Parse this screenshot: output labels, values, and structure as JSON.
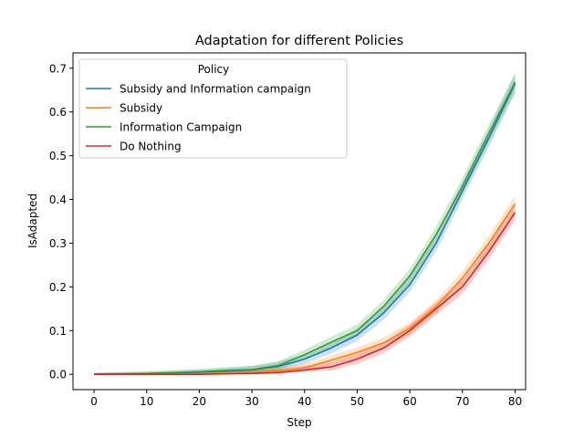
{
  "chart_data": {
    "type": "line",
    "title": "Adaptation for different Policies",
    "xlabel": "Step",
    "ylabel": "IsAdapted",
    "xlim": [
      -4,
      82
    ],
    "ylim": [
      -0.035,
      0.735
    ],
    "xticks": [
      0,
      10,
      20,
      30,
      40,
      50,
      60,
      70,
      80
    ],
    "yticks": [
      0.0,
      0.1,
      0.2,
      0.3,
      0.4,
      0.5,
      0.6,
      0.7
    ],
    "xtick_labels": [
      "0",
      "10",
      "20",
      "30",
      "40",
      "50",
      "60",
      "70",
      "80"
    ],
    "ytick_labels": [
      "0.0",
      "0.1",
      "0.2",
      "0.3",
      "0.4",
      "0.5",
      "0.6",
      "0.7"
    ],
    "grid": false,
    "legend": {
      "title": "Policy",
      "placement": "upper-left"
    },
    "x": [
      0,
      10,
      20,
      25,
      30,
      35,
      40,
      45,
      50,
      55,
      60,
      65,
      70,
      75,
      80
    ],
    "series": [
      {
        "name": "Subsidy and Information campaign",
        "color": "#1f77b4",
        "values": [
          0.0,
          0.001,
          0.005,
          0.007,
          0.01,
          0.018,
          0.035,
          0.06,
          0.09,
          0.14,
          0.205,
          0.3,
          0.42,
          0.54,
          0.665
        ],
        "band": 0.022
      },
      {
        "name": "Subsidy",
        "color": "#ff7f0e",
        "values": [
          0.0,
          0.0,
          0.001,
          0.002,
          0.004,
          0.008,
          0.015,
          0.032,
          0.05,
          0.072,
          0.105,
          0.155,
          0.22,
          0.3,
          0.39
        ],
        "band": 0.018
      },
      {
        "name": "Information Campaign",
        "color": "#2ca02c",
        "values": [
          0.0,
          0.002,
          0.006,
          0.009,
          0.011,
          0.02,
          0.045,
          0.073,
          0.1,
          0.155,
          0.225,
          0.32,
          0.43,
          0.55,
          0.668
        ],
        "band": 0.022
      },
      {
        "name": "Do Nothing",
        "color": "#d62728",
        "values": [
          0.0,
          0.0,
          0.0,
          0.001,
          0.002,
          0.004,
          0.01,
          0.017,
          0.035,
          0.06,
          0.1,
          0.15,
          0.2,
          0.28,
          0.37
        ],
        "band": 0.018
      }
    ]
  }
}
